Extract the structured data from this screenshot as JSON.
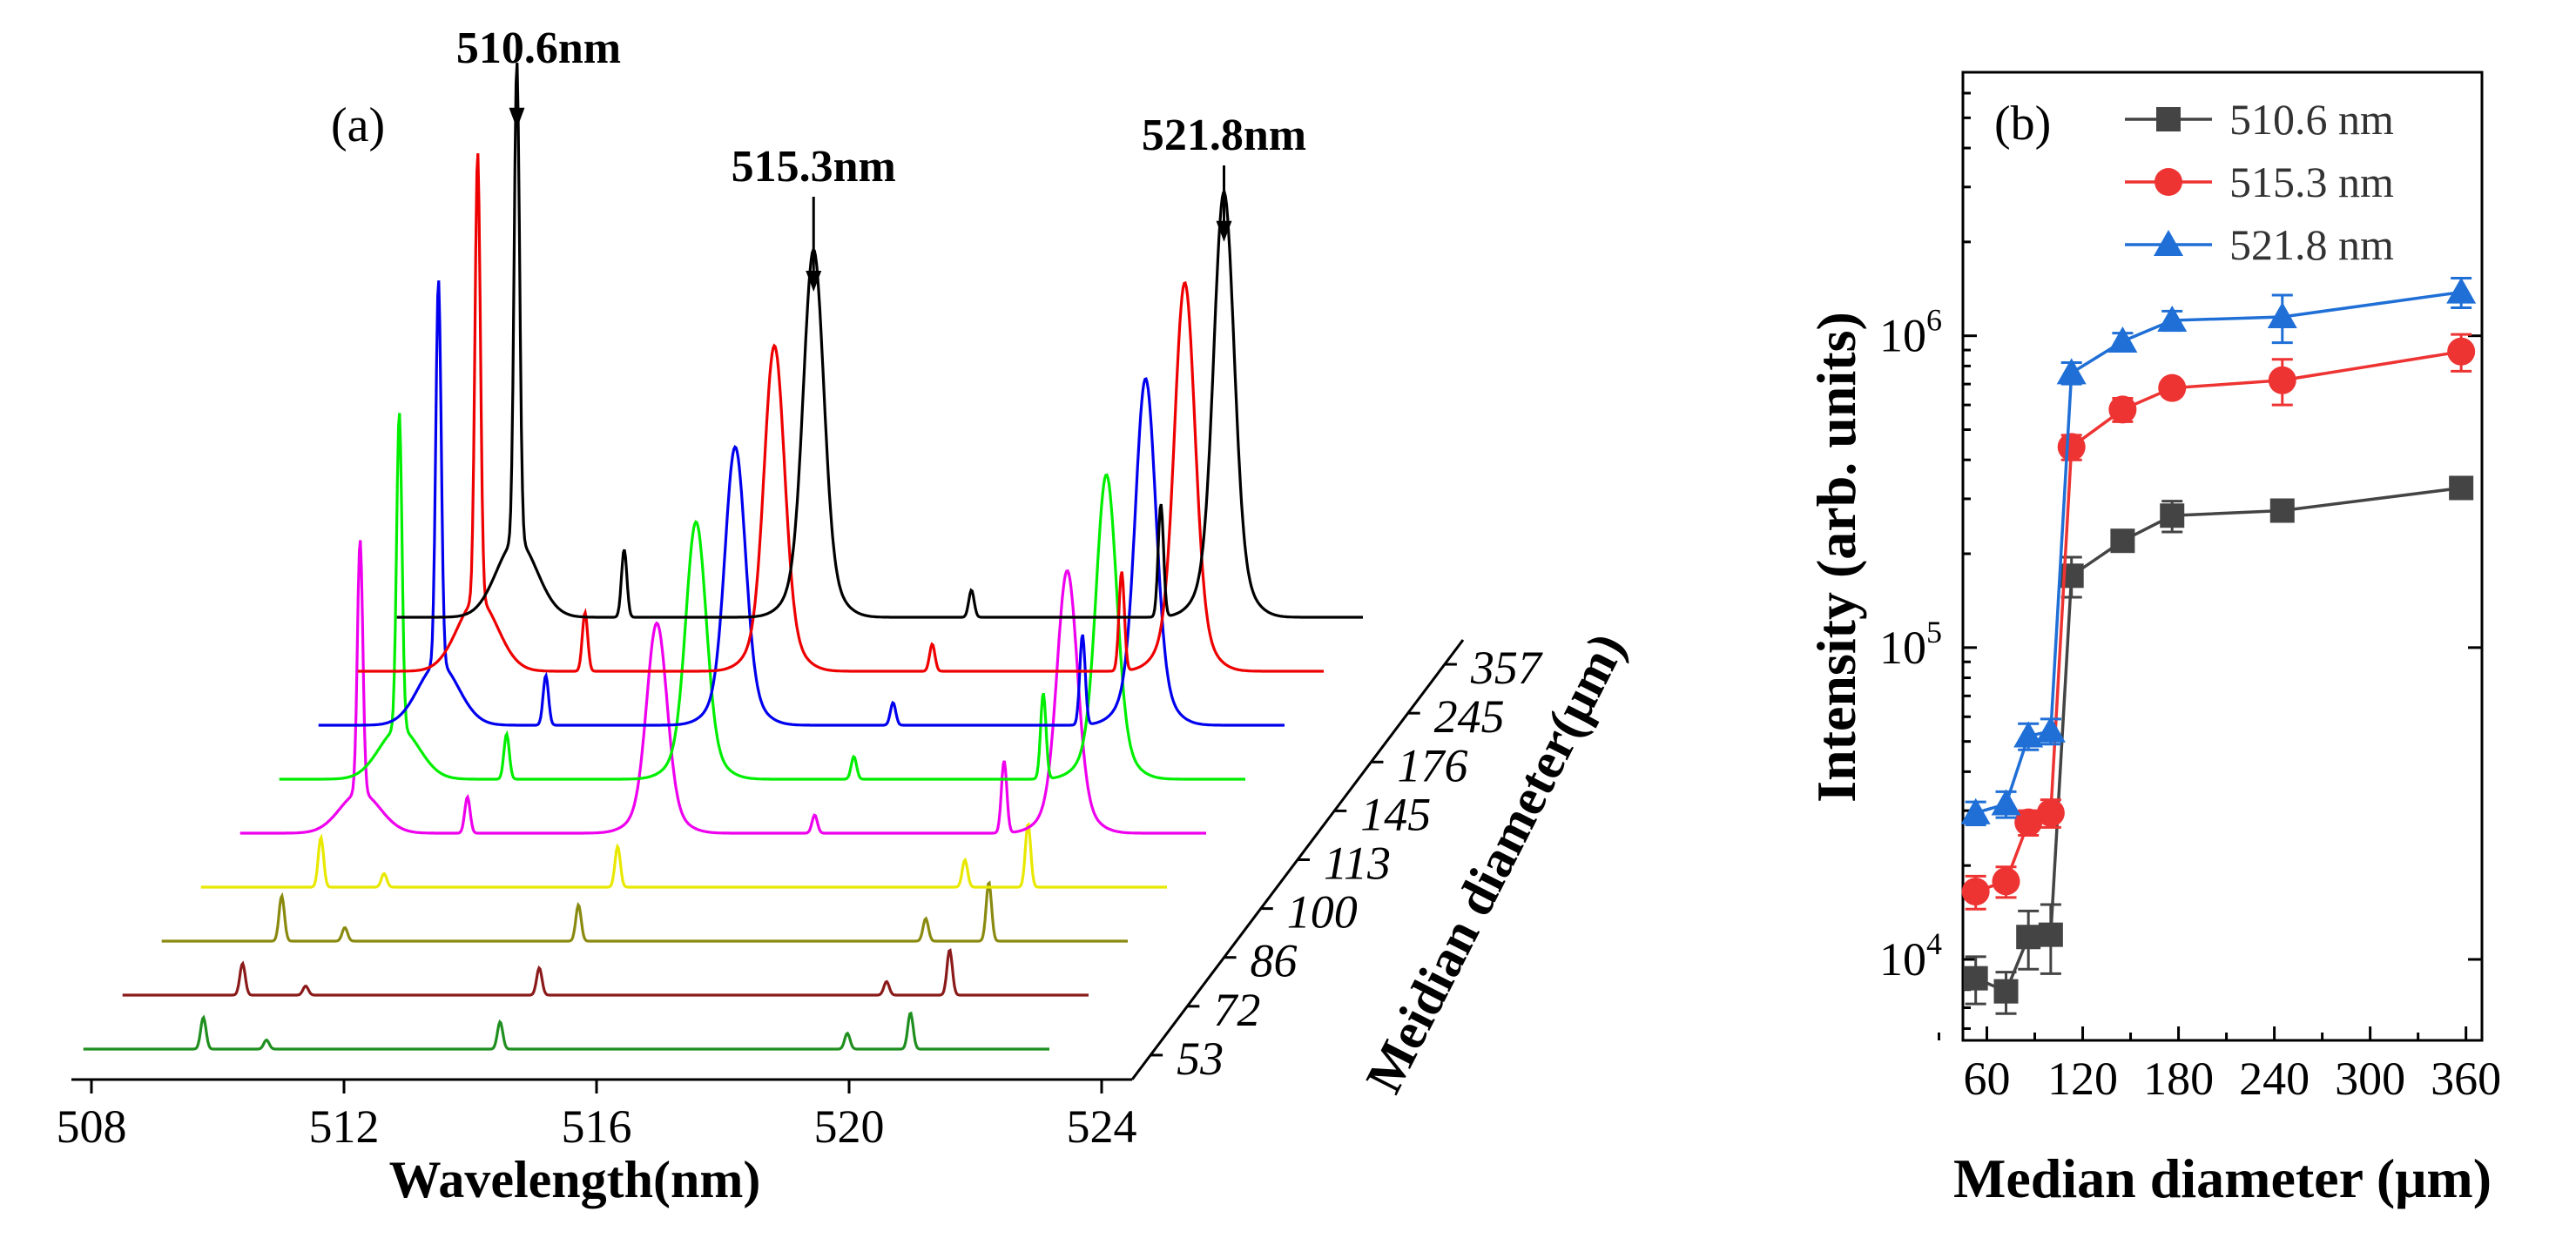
{
  "chart_data": [
    {
      "panel": "(a)",
      "type": "line",
      "subtype": "waterfall spectra",
      "xlabel": "Wavelength(nm)",
      "zlabel": "Meidian diameter(μm)",
      "xlim": [
        508,
        524
      ],
      "x_ticks": [
        "508",
        "512",
        "516",
        "520",
        "524"
      ],
      "z_ticks": [
        "53",
        "72",
        "86",
        "100",
        "113",
        "145",
        "176",
        "245",
        "357"
      ],
      "series": [
        {
          "name": "53",
          "color": "#1f8f1f",
          "intensity": 10000.0,
          "peaks": [
            [
              510.6,
              0.7
            ],
            [
              515.3,
              0.6
            ],
            [
              521.8,
              0.8
            ],
            [
              520.8,
              0.35
            ],
            [
              511.6,
              0.2
            ]
          ]
        },
        {
          "name": "72",
          "color": "#8b1a1a",
          "intensity": 11000.0,
          "peaks": [
            [
              510.6,
              0.7
            ],
            [
              515.3,
              0.6
            ],
            [
              521.8,
              1.0
            ],
            [
              520.8,
              0.3
            ],
            [
              511.6,
              0.2
            ]
          ]
        },
        {
          "name": "86",
          "color": "#8a8a10",
          "intensity": 13000.0,
          "peaks": [
            [
              510.6,
              1.0
            ],
            [
              515.3,
              0.8
            ],
            [
              521.8,
              1.3
            ],
            [
              520.8,
              0.5
            ],
            [
              511.6,
              0.3
            ]
          ]
        },
        {
          "name": "100",
          "color": "#e8e800",
          "intensity": 15000.0,
          "peaks": [
            [
              510.6,
              1.1
            ],
            [
              515.3,
              0.9
            ],
            [
              521.8,
              1.4
            ],
            [
              520.8,
              0.6
            ],
            [
              511.6,
              0.3
            ]
          ]
        },
        {
          "name": "113",
          "color": "#ee00ee",
          "intensity": 170000.0,
          "peaks": [
            [
              510.6,
              5.6
            ],
            [
              512.3,
              0.8
            ],
            [
              515.3,
              4.0
            ],
            [
              521.8,
              5.0
            ],
            [
              520.8,
              1.6
            ],
            [
              517.8,
              0.4
            ]
          ]
        },
        {
          "name": "145",
          "color": "#00ee00",
          "intensity": 220000.0,
          "peaks": [
            [
              510.6,
              7.0
            ],
            [
              512.3,
              1.0
            ],
            [
              515.3,
              4.9
            ],
            [
              521.8,
              5.8
            ],
            [
              520.8,
              1.9
            ],
            [
              517.8,
              0.5
            ]
          ]
        },
        {
          "name": "176",
          "color": "#0000ee",
          "intensity": 260000.0,
          "peaks": [
            [
              510.6,
              8.5
            ],
            [
              512.3,
              1.1
            ],
            [
              515.3,
              5.3
            ],
            [
              521.8,
              6.6
            ],
            [
              520.8,
              2.0
            ],
            [
              517.8,
              0.5
            ]
          ]
        },
        {
          "name": "245",
          "color": "#ee0000",
          "intensity": 270000.0,
          "peaks": [
            [
              510.6,
              9.9
            ],
            [
              512.3,
              1.3
            ],
            [
              515.3,
              6.2
            ],
            [
              521.8,
              7.4
            ],
            [
              520.8,
              2.2
            ],
            [
              517.8,
              0.6
            ]
          ]
        },
        {
          "name": "357",
          "color": "#000000",
          "intensity": 320000.0,
          "peaks": [
            [
              510.6,
              10.6
            ],
            [
              512.3,
              1.5
            ],
            [
              515.3,
              7.0
            ],
            [
              521.8,
              8.1
            ],
            [
              520.8,
              2.5
            ],
            [
              517.8,
              0.6
            ]
          ]
        }
      ],
      "annotations": [
        {
          "text": "510.6nm",
          "x": 510.6
        },
        {
          "text": "515.3nm",
          "x": 515.3
        },
        {
          "text": "521.8nm",
          "x": 521.8
        }
      ]
    },
    {
      "panel": "(b)",
      "type": "line",
      "yscale": "log",
      "xlabel": "Median diameter (μm)",
      "ylabel": "Intensity (arb. units)",
      "xlim": [
        45,
        370
      ],
      "ylim": [
        5500,
        7000000
      ],
      "x_ticks": [
        60,
        120,
        180,
        240,
        300,
        360
      ],
      "y_ticks": [
        {
          "value": 10000,
          "base": "10",
          "exp": "4"
        },
        {
          "value": 100000,
          "base": "10",
          "exp": "5"
        },
        {
          "value": 1000000,
          "base": "10",
          "exp": "6"
        }
      ],
      "x": [
        53,
        72,
        86,
        100,
        113,
        145,
        176,
        245,
        357
      ],
      "series": [
        {
          "name": "510.6 nm",
          "color": "#444444",
          "marker": "square",
          "values": [
            8700,
            7900,
            11800,
            12000,
            170000,
            220000,
            265000,
            275000,
            325000
          ],
          "errors": [
            1500,
            1200,
            2500,
            3000,
            25000,
            15000,
            30000,
            20000,
            25000
          ]
        },
        {
          "name": "515.3 nm",
          "color": "#ee3333",
          "marker": "circle",
          "values": [
            16500,
            17800,
            27500,
            29500,
            440000,
            580000,
            680000,
            720000,
            890000
          ],
          "errors": [
            2000,
            2000,
            2500,
            3000,
            40000,
            50000,
            40000,
            120000,
            120000
          ]
        },
        {
          "name": "521.8 nm",
          "color": "#1f6fd6",
          "marker": "triangle",
          "values": [
            29500,
            31500,
            52000,
            54000,
            760000,
            960000,
            1120000,
            1150000,
            1380000
          ],
          "errors": [
            2500,
            3000,
            5000,
            5000,
            60000,
            60000,
            80000,
            200000,
            150000
          ]
        }
      ],
      "legend": "top-right"
    }
  ]
}
